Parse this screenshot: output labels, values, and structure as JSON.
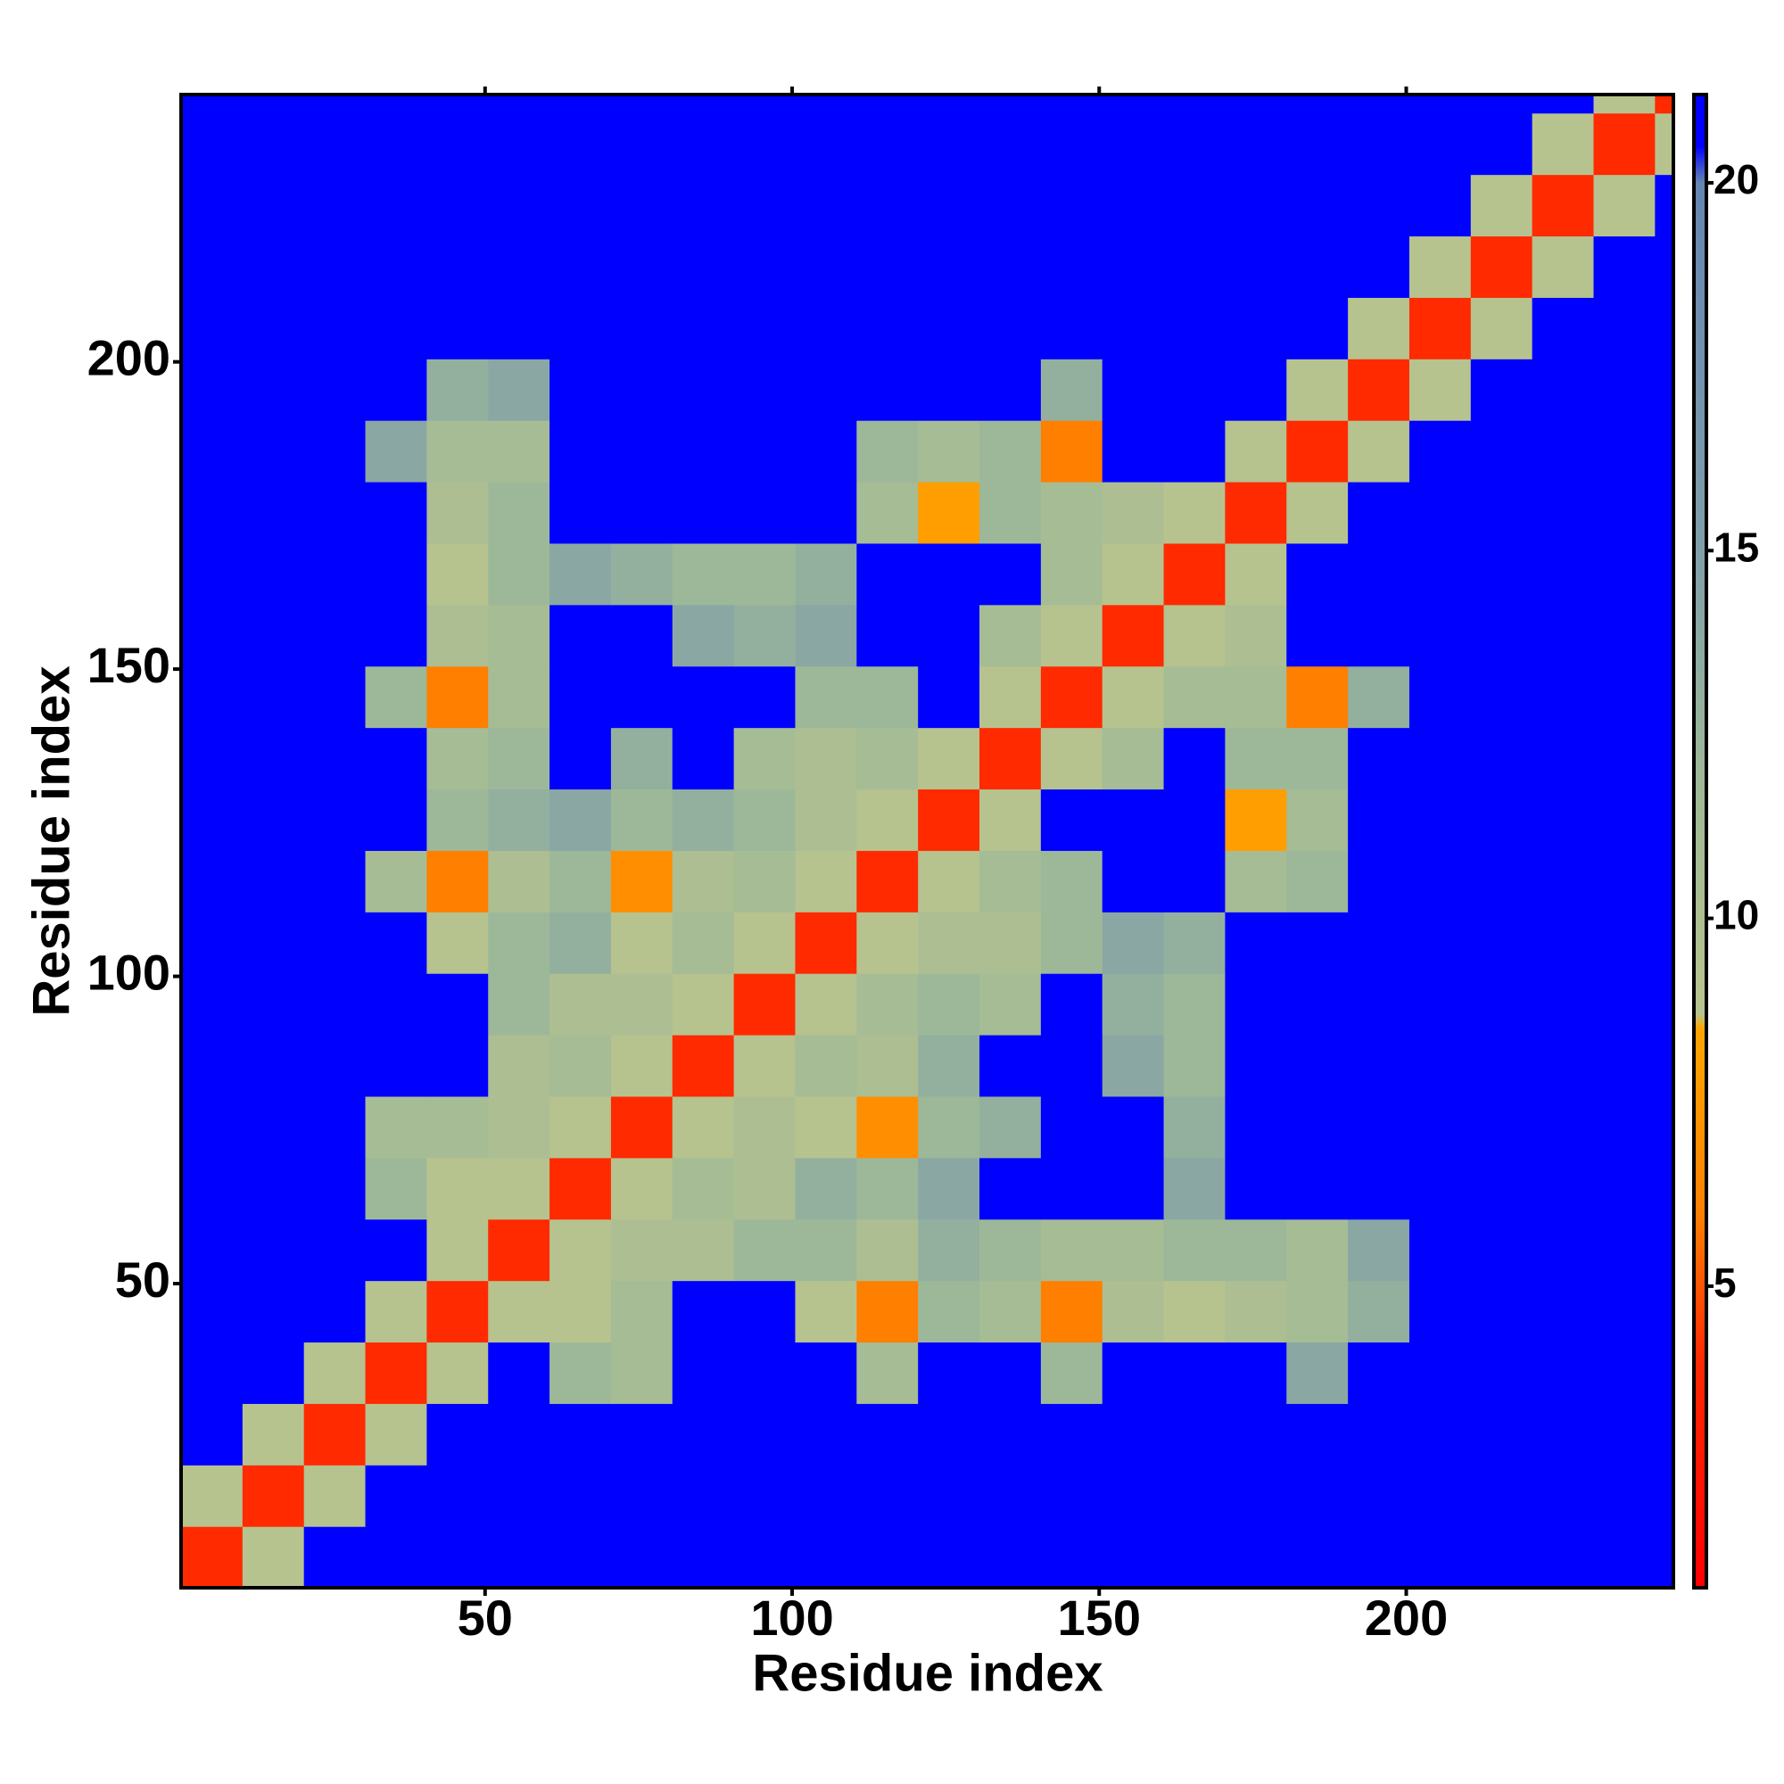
{
  "chart_data": {
    "type": "heatmap",
    "xlabel": "Residue index",
    "ylabel": "Residue index",
    "xbins": [
      0.5,
      10.5,
      20.5,
      30.5,
      40.5,
      50.5,
      60.5,
      70.5,
      80.5,
      90.5,
      100.5,
      110.5,
      120.5,
      130.5,
      140.5,
      150.5,
      160.5,
      170.5,
      180.5,
      190.5,
      200.5,
      210.5,
      220.5,
      230.5,
      240.5,
      243.5
    ],
    "ybins": [
      0.5,
      10.5,
      20.5,
      30.5,
      40.5,
      50.5,
      60.5,
      70.5,
      80.5,
      90.5,
      100.5,
      110.5,
      120.5,
      130.5,
      140.5,
      150.5,
      160.5,
      170.5,
      180.5,
      190.5,
      200.5,
      210.5,
      220.5,
      230.5,
      240.5,
      243.5
    ],
    "xlim": [
      0.5,
      243.5
    ],
    "ylim": [
      0.5,
      243.5
    ],
    "xticks": [
      50,
      100,
      150,
      200
    ],
    "yticks": [
      50,
      100,
      150,
      200
    ],
    "zlim": [
      0.9,
      21.2
    ],
    "zticks": [
      5,
      10,
      15,
      20
    ],
    "colorscale": [
      [
        0.9,
        "#ff0000"
      ],
      [
        4,
        "#ff2a00"
      ],
      [
        6,
        "#ff8000"
      ],
      [
        8.5,
        "#ffa500"
      ],
      [
        8.7,
        "#b8c48e"
      ],
      [
        12,
        "#9db898"
      ],
      [
        15,
        "#809faa"
      ],
      [
        20,
        "#6585b2"
      ],
      [
        20.5,
        "#0000ff"
      ],
      [
        21.2,
        "#0000ff"
      ]
    ],
    "z": [
      [
        4,
        9,
        21,
        21,
        21,
        21,
        21,
        21,
        21,
        21,
        21,
        21,
        21,
        21,
        21,
        21,
        21,
        21,
        21,
        21,
        21,
        21,
        21,
        21,
        21
      ],
      [
        9,
        4,
        9,
        21,
        21,
        21,
        21,
        21,
        21,
        21,
        21,
        21,
        21,
        21,
        21,
        21,
        21,
        21,
        21,
        21,
        21,
        21,
        21,
        21,
        21
      ],
      [
        21,
        9,
        4,
        9,
        21,
        21,
        21,
        21,
        21,
        21,
        21,
        21,
        21,
        21,
        21,
        21,
        21,
        21,
        21,
        21,
        21,
        21,
        21,
        21,
        21
      ],
      [
        21,
        21,
        9,
        4,
        9,
        21,
        12,
        11,
        21,
        21,
        21,
        11,
        21,
        21,
        12,
        21,
        21,
        21,
        14,
        21,
        21,
        21,
        21,
        21,
        21
      ],
      [
        21,
        21,
        21,
        9,
        4,
        9,
        9,
        11,
        21,
        21,
        9,
        6,
        12,
        11,
        6,
        10,
        9,
        10,
        11,
        13,
        21,
        21,
        21,
        21,
        21
      ],
      [
        21,
        21,
        21,
        21,
        9,
        4,
        9,
        10,
        10,
        12,
        12,
        10,
        13,
        12,
        11,
        11,
        12,
        12,
        11,
        14,
        21,
        21,
        21,
        21,
        21
      ],
      [
        21,
        21,
        21,
        12,
        9,
        9,
        4,
        9,
        11,
        10,
        13,
        12,
        14,
        21,
        21,
        21,
        14,
        21,
        21,
        21,
        21,
        21,
        21,
        21,
        21
      ],
      [
        21,
        21,
        21,
        11,
        11,
        10,
        9,
        4,
        9,
        10,
        9,
        7,
        12,
        13,
        21,
        21,
        13,
        21,
        21,
        21,
        21,
        21,
        21,
        21,
        21
      ],
      [
        21,
        21,
        21,
        21,
        21,
        10,
        11,
        9,
        4,
        9,
        11,
        10,
        13,
        21,
        21,
        14,
        12,
        21,
        21,
        21,
        21,
        21,
        21,
        21,
        21
      ],
      [
        21,
        21,
        21,
        21,
        21,
        12,
        10,
        10,
        9,
        4,
        9,
        11,
        12,
        11,
        21,
        13,
        12,
        21,
        21,
        21,
        21,
        21,
        21,
        21,
        21
      ],
      [
        21,
        21,
        21,
        21,
        9,
        12,
        13,
        9,
        11,
        9,
        4,
        9,
        10,
        10,
        12,
        14,
        13,
        21,
        21,
        21,
        21,
        21,
        21,
        21,
        21
      ],
      [
        21,
        21,
        21,
        11,
        6,
        10,
        12,
        7,
        10,
        11,
        9,
        4,
        9,
        11,
        12,
        21,
        21,
        11,
        12,
        21,
        21,
        21,
        21,
        21,
        21
      ],
      [
        21,
        21,
        21,
        21,
        12,
        13,
        14,
        12,
        13,
        12,
        10,
        9,
        4,
        9,
        21,
        21,
        21,
        8,
        11,
        21,
        21,
        21,
        21,
        21,
        21
      ],
      [
        21,
        21,
        21,
        21,
        11,
        12,
        21,
        13,
        21,
        11,
        10,
        11,
        9,
        4,
        9,
        11,
        21,
        12,
        12,
        21,
        21,
        21,
        21,
        21,
        21
      ],
      [
        21,
        21,
        21,
        12,
        6,
        11,
        21,
        21,
        21,
        21,
        12,
        12,
        21,
        9,
        4,
        9,
        11,
        11,
        6,
        13,
        21,
        21,
        21,
        21,
        21
      ],
      [
        21,
        21,
        21,
        21,
        10,
        11,
        21,
        21,
        14,
        13,
        14,
        21,
        21,
        11,
        9,
        4,
        9,
        10,
        21,
        21,
        21,
        21,
        21,
        21,
        21
      ],
      [
        21,
        21,
        21,
        21,
        9,
        12,
        14,
        13,
        12,
        12,
        13,
        21,
        21,
        21,
        11,
        9,
        4,
        9,
        21,
        21,
        21,
        21,
        21,
        21,
        21
      ],
      [
        21,
        21,
        21,
        21,
        10,
        12,
        21,
        21,
        21,
        21,
        21,
        11,
        8,
        12,
        11,
        10,
        9,
        4,
        9,
        21,
        21,
        21,
        21,
        21,
        21
      ],
      [
        21,
        21,
        21,
        14,
        11,
        11,
        21,
        21,
        21,
        21,
        21,
        12,
        11,
        12,
        6,
        21,
        21,
        9,
        4,
        9,
        21,
        21,
        21,
        21,
        21
      ],
      [
        21,
        21,
        21,
        21,
        13,
        14,
        21,
        21,
        21,
        21,
        21,
        21,
        21,
        21,
        13,
        21,
        21,
        21,
        9,
        4,
        9,
        21,
        21,
        21,
        21
      ],
      [
        21,
        21,
        21,
        21,
        21,
        21,
        21,
        21,
        21,
        21,
        21,
        21,
        21,
        21,
        21,
        21,
        21,
        21,
        21,
        9,
        4,
        9,
        21,
        21,
        21
      ],
      [
        21,
        21,
        21,
        21,
        21,
        21,
        21,
        21,
        21,
        21,
        21,
        21,
        21,
        21,
        21,
        21,
        21,
        21,
        21,
        21,
        9,
        4,
        9,
        21,
        21
      ],
      [
        21,
        21,
        21,
        21,
        21,
        21,
        21,
        21,
        21,
        21,
        21,
        21,
        21,
        21,
        21,
        21,
        21,
        21,
        21,
        21,
        21,
        9,
        4,
        9,
        21
      ],
      [
        21,
        21,
        21,
        21,
        21,
        21,
        21,
        21,
        21,
        21,
        21,
        21,
        21,
        21,
        21,
        21,
        21,
        21,
        21,
        21,
        21,
        21,
        9,
        4,
        9
      ],
      [
        21,
        21,
        21,
        21,
        21,
        21,
        21,
        21,
        21,
        21,
        21,
        21,
        21,
        21,
        21,
        21,
        21,
        21,
        21,
        21,
        21,
        21,
        21,
        9,
        4
      ]
    ]
  }
}
